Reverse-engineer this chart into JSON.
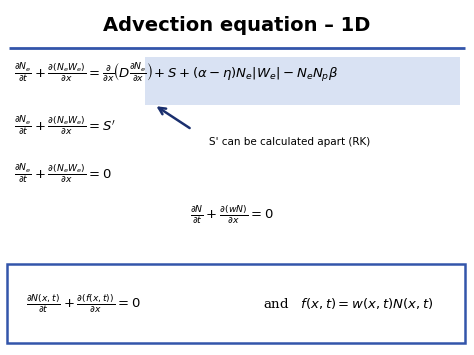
{
  "title": "Advection equation – 1D",
  "title_fontsize": 14,
  "title_fontweight": "bold",
  "title_color": "#000000",
  "bg_color": "#ffffff",
  "line_color": "#3355aa",
  "highlight_bg": "#d9e2f3",
  "box_color": "#3355aa",
  "note": "S' can be calculated apart (RK)",
  "figsize": [
    4.74,
    3.55
  ],
  "dpi": 100
}
